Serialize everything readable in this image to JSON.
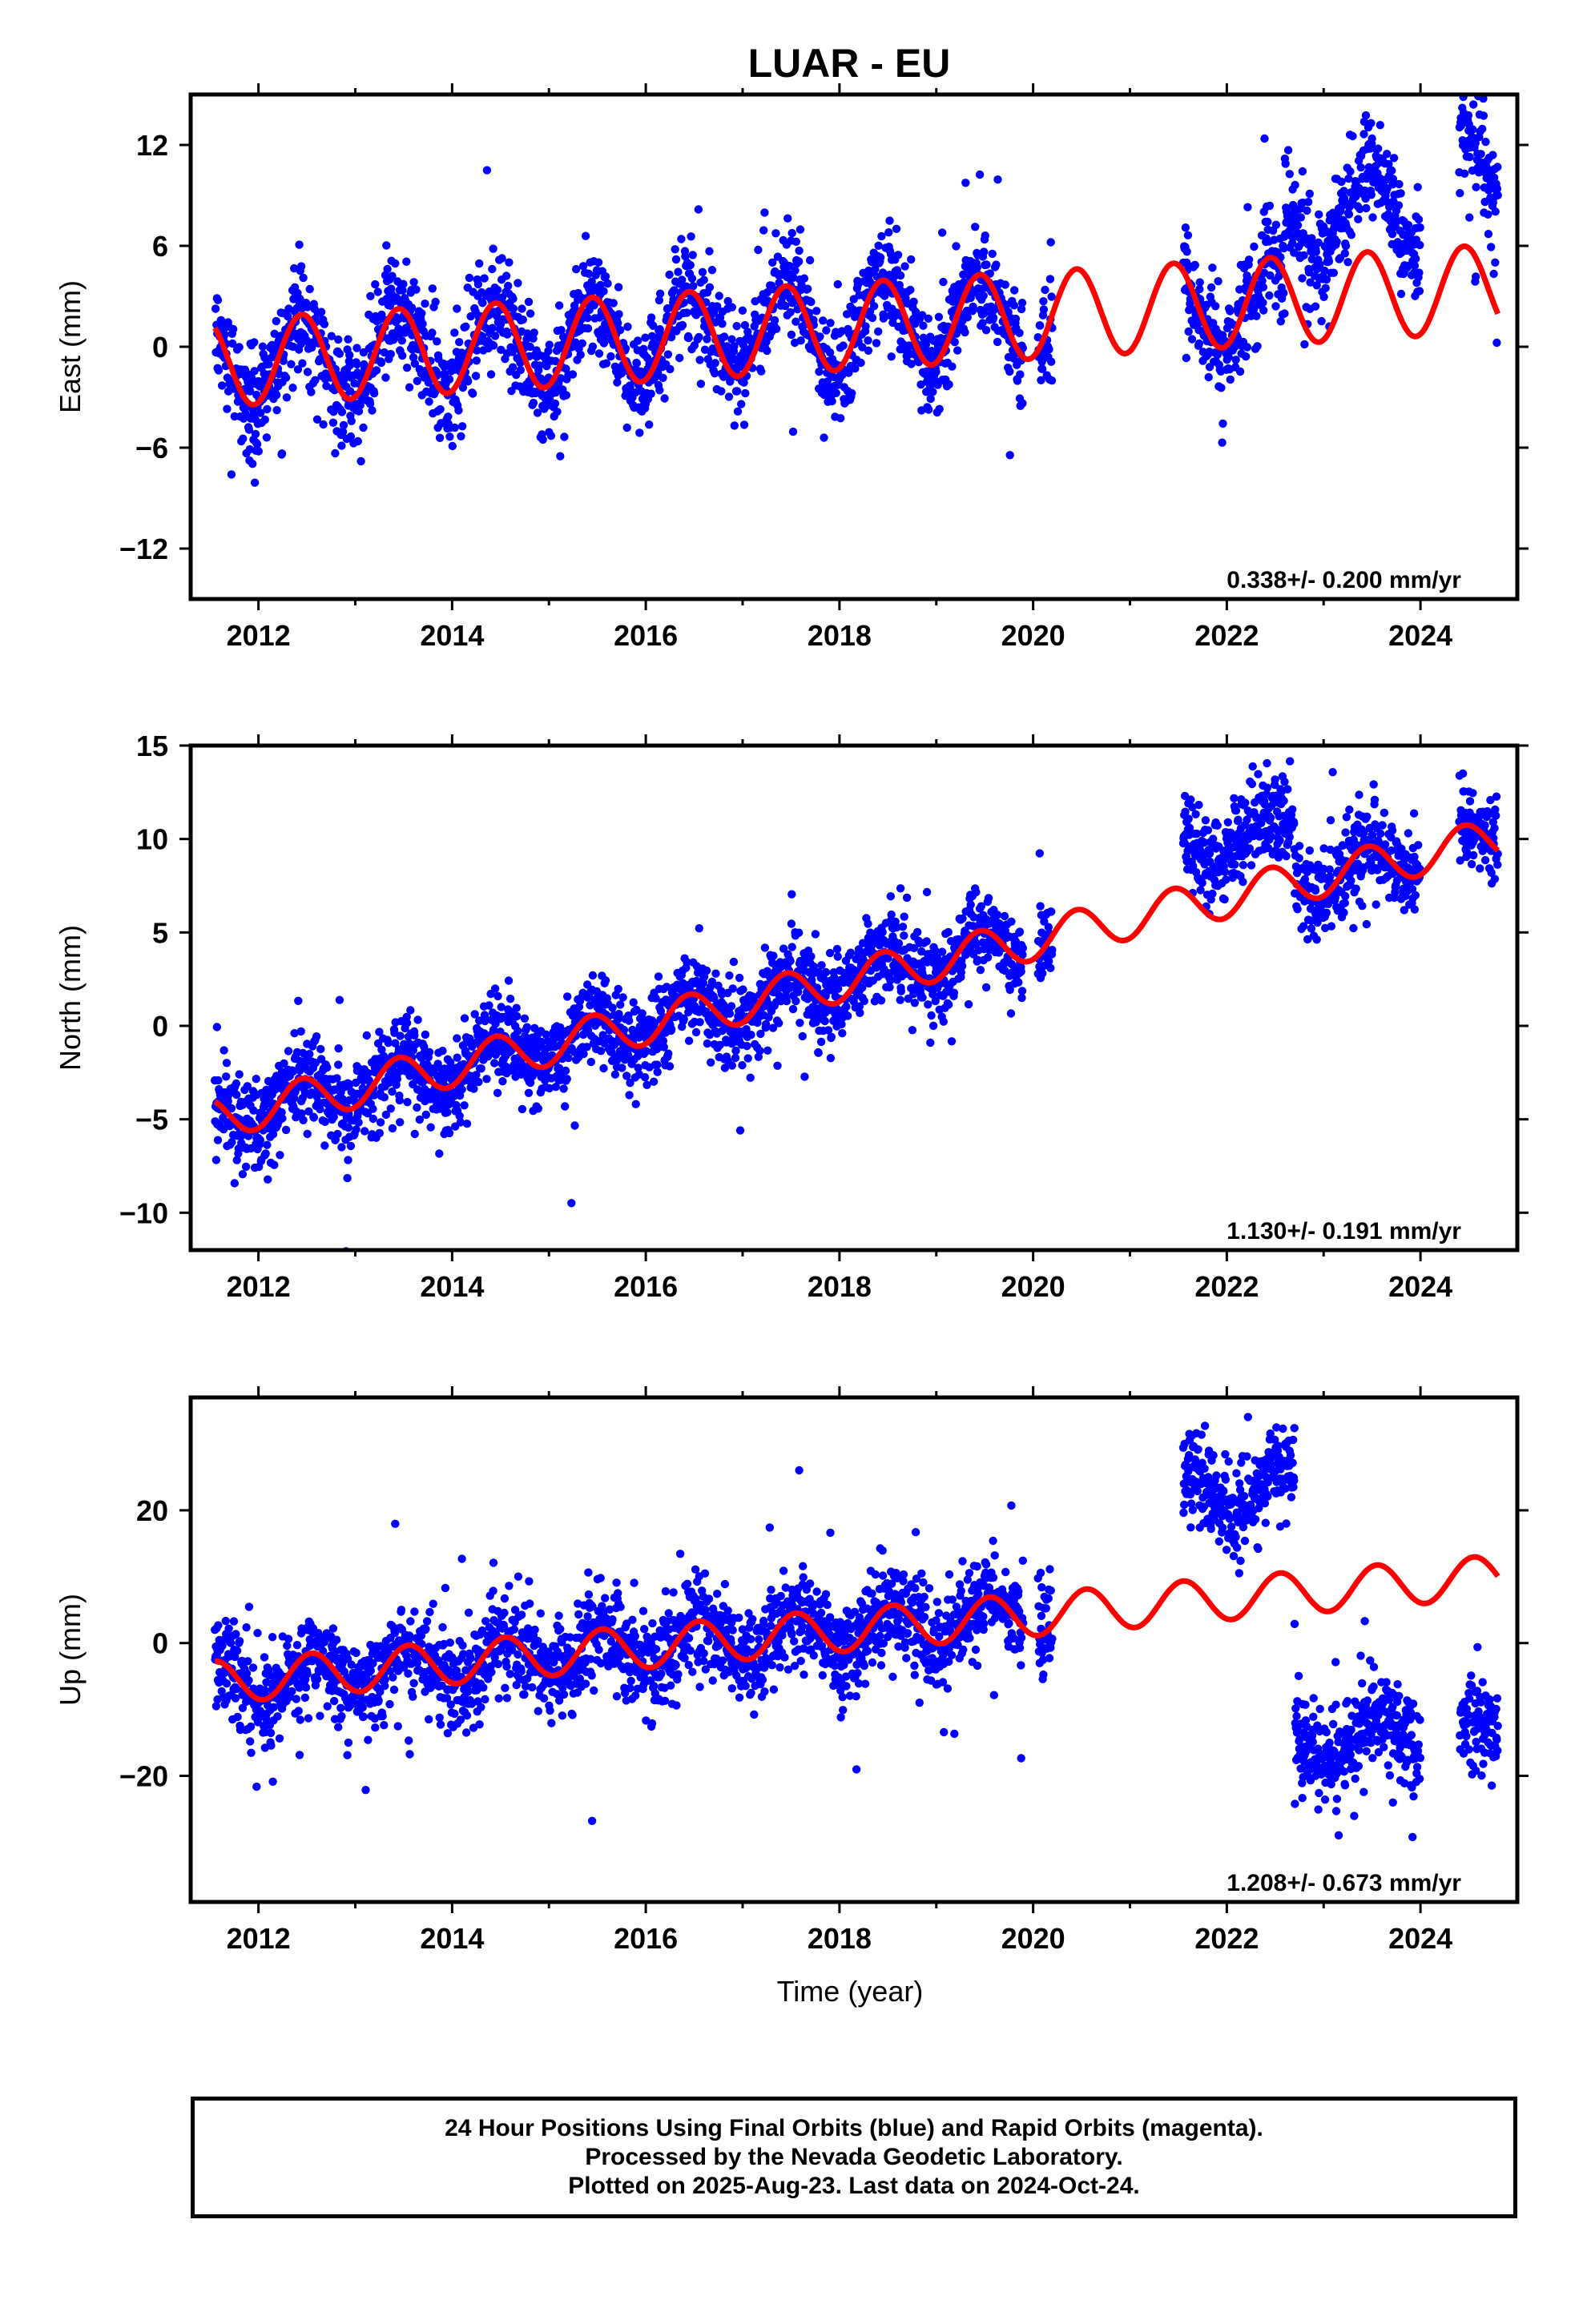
{
  "title": "LUAR - EU",
  "colors": {
    "observations": "#0000ff",
    "model": "#ff0000",
    "axes": "#000000"
  },
  "chart_data": [
    {
      "type": "scatter",
      "ylabel": "East (mm)",
      "xlabel": "",
      "xlim": [
        2011.3,
        2025.0
      ],
      "ylim": [
        -15,
        15
      ],
      "xticks": [
        2012,
        2014,
        2016,
        2018,
        2020,
        2022,
        2024
      ],
      "yticks": [
        12,
        6,
        0,
        -6,
        -12
      ],
      "ytick_labels": [
        "12",
        "6",
        "0",
        "−6",
        "−12"
      ],
      "rate_label": "0.338+/- 0.200 mm/yr",
      "model": {
        "offset": -1.0,
        "trend": 0.338,
        "amplitude": 2.6,
        "peak_phase": 0.45,
        "jumps": []
      },
      "data_segments": [
        [
          2011.55,
          2019.9
        ],
        [
          2020.05,
          2020.2
        ],
        [
          2021.55,
          2024.0
        ],
        [
          2024.4,
          2024.8
        ]
      ],
      "scatter_noise": 1.5,
      "scatter_offsets": [
        {
          "from": 2022.6,
          "to": 2024.0,
          "add": 5.0
        },
        {
          "from": 2024.4,
          "to": 2024.8,
          "add": 6.5
        }
      ],
      "series": [
        {
          "name": "24 hour positions",
          "values": "generated from model"
        }
      ]
    },
    {
      "type": "scatter",
      "ylabel": "North (mm)",
      "xlabel": "",
      "xlim": [
        2011.3,
        2025.0
      ],
      "ylim": [
        -12,
        15
      ],
      "xticks": [
        2012,
        2014,
        2016,
        2018,
        2020,
        2022,
        2024
      ],
      "yticks": [
        15,
        10,
        5,
        0,
        -5,
        -10
      ],
      "ytick_labels": [
        "15",
        "10",
        "5",
        "0",
        "−5",
        "−10"
      ],
      "rate_label": "1.130+/- 0.191 mm/yr",
      "model": {
        "offset": -5.0,
        "trend": 1.13,
        "amplitude": 1.1,
        "peak_phase": 0.45,
        "jumps": []
      },
      "data_segments": [
        [
          2011.55,
          2019.9
        ],
        [
          2020.05,
          2020.2
        ],
        [
          2021.55,
          2024.0
        ],
        [
          2024.4,
          2024.8
        ]
      ],
      "scatter_noise": 1.1,
      "scatter_offsets": [
        {
          "from": 2021.55,
          "to": 2022.7,
          "add": 3.0
        }
      ],
      "series": [
        {
          "name": "24 hour positions",
          "values": "generated from model"
        }
      ]
    },
    {
      "type": "scatter",
      "ylabel": "Up (mm)",
      "xlabel": "Time (year)",
      "xlim": [
        2011.3,
        2025.0
      ],
      "ylim": [
        -39,
        37
      ],
      "xticks": [
        2012,
        2014,
        2016,
        2018,
        2020,
        2022,
        2024
      ],
      "yticks": [
        20,
        0,
        -20
      ],
      "ytick_labels": [
        "20",
        "0",
        "−20"
      ],
      "rate_label": "1.208+/- 0.673 mm/yr",
      "model": {
        "offset": -6.0,
        "trend": 1.208,
        "amplitude": 3.2,
        "peak_phase": 0.55,
        "jumps": []
      },
      "data_segments": [
        [
          2011.55,
          2019.9
        ],
        [
          2020.05,
          2020.2
        ],
        [
          2021.55,
          2022.7
        ],
        [
          2022.7,
          2024.0
        ],
        [
          2024.4,
          2024.8
        ]
      ],
      "scatter_noise": 3.5,
      "scatter_offsets": [
        {
          "from": 2021.55,
          "to": 2022.7,
          "add": 16.0
        },
        {
          "from": 2022.7,
          "to": 2024.0,
          "add": -23.0
        },
        {
          "from": 2024.4,
          "to": 2024.8,
          "add": -24.0
        }
      ],
      "series": [
        {
          "name": "24 hour positions",
          "values": "generated from model"
        }
      ]
    }
  ],
  "caption": {
    "line1": "24 Hour Positions Using Final Orbits (blue) and Rapid Orbits (magenta).",
    "line2": "Processed by the Nevada Geodetic Laboratory.",
    "line3": "Plotted on 2025-Aug-23. Last data on 2024-Oct-24."
  }
}
